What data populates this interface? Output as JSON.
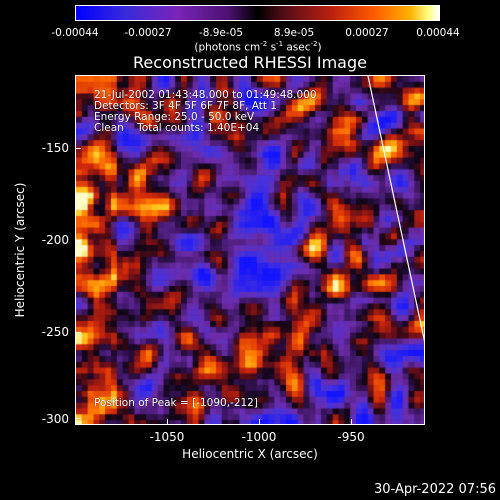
{
  "colorbar": {
    "tick_labels": [
      "-0.00044",
      "-0.00027",
      "-8.9e-05",
      "8.9e-05",
      "0.00027",
      "0.00044"
    ],
    "units_main": "(photons cm",
    "units_exp1": "-2",
    "units_s": " s",
    "units_exp2": "-1",
    "units_asec": " asec",
    "units_exp3": "-2",
    "units_close": ")"
  },
  "title": "Reconstructed RHESSI Image",
  "annotations": {
    "line1": "21-Jul-2002 01:43:48.000 to 01:49:48.000",
    "line2": "Detectors: 3F 4F 5F 6F 7F 8F, Att 1",
    "line3": "Energy Range: 25.0 - 50.0 keV",
    "line4": "Clean    Total counts: 1.40E+04",
    "peak": "Position of Peak = [-1090,-212]"
  },
  "axes": {
    "xlabel": "Heliocentric X (arcsec)",
    "ylabel": "Heliocentric Y (arcsec)",
    "xticks": [
      "-1050",
      "-1000",
      "-950"
    ],
    "yticks": [
      "-150",
      "-200",
      "-250",
      "-300"
    ],
    "xrange": [
      -1100,
      -910
    ],
    "yrange": [
      -303,
      -113
    ]
  },
  "timestamp": "30-Apr-2022 07:56"
}
